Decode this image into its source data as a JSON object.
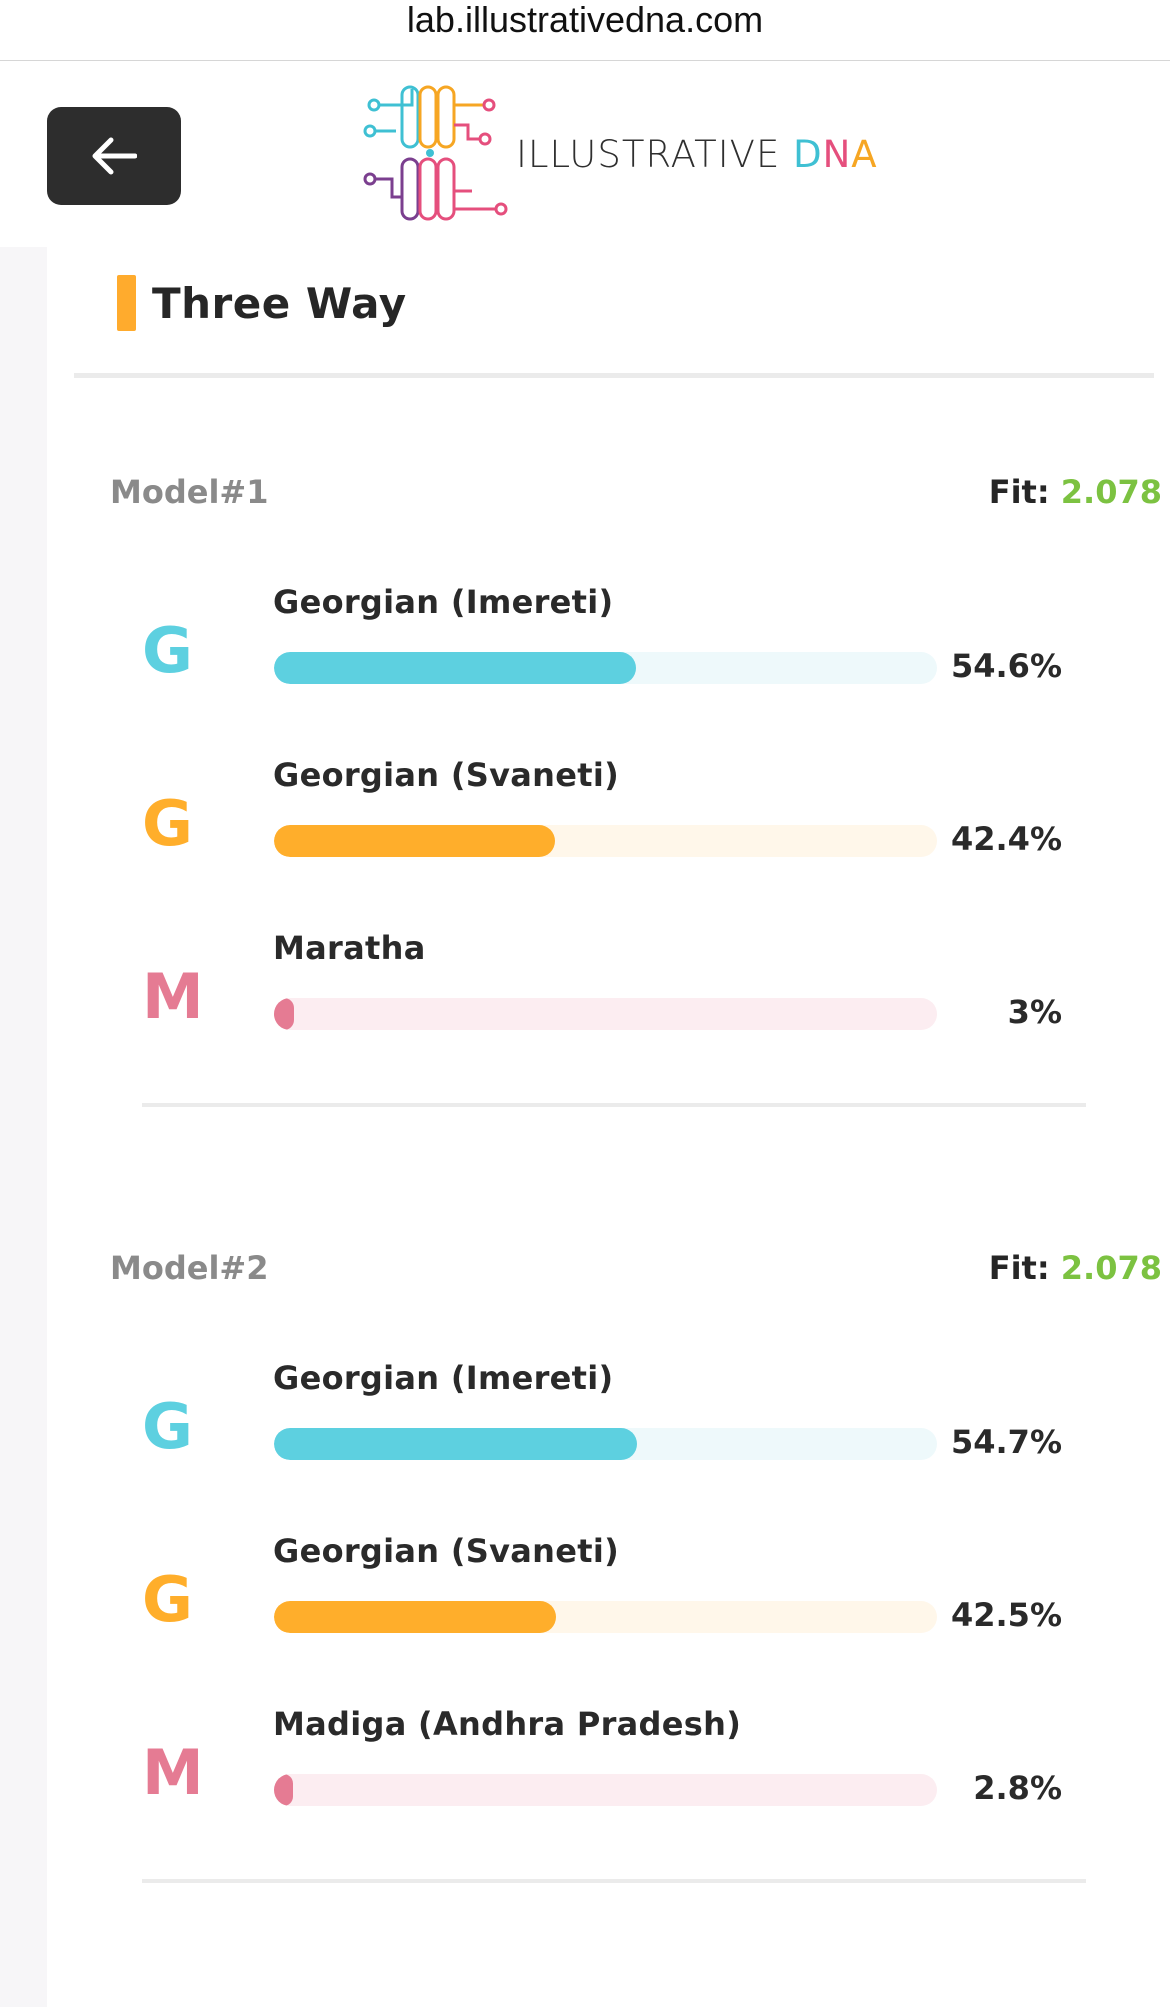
{
  "browser": {
    "url": "lab.illustrativedna.com"
  },
  "header": {
    "back_icon": "arrow-left-icon",
    "logo": {
      "word1": "ILLUSTRATIVE",
      "word2_letters": [
        "D",
        "N",
        "A"
      ],
      "word2_colors": [
        "#3fc0d3",
        "#e54f7d",
        "#f6a623"
      ]
    }
  },
  "section": {
    "title": "Three Way",
    "accent_color": "#ffab2d"
  },
  "colors": {
    "cyan": "#5dd0e0",
    "cyan_track": "#eef9fb",
    "orange": "#ffae2b",
    "orange_track": "#fff7ea",
    "pink": "#e57b93",
    "pink_track": "#fcedf1",
    "fit_green": "#7cc241"
  },
  "models": [
    {
      "label": "Model#1",
      "fit_label": "Fit: ",
      "fit_value": "2.078",
      "rows": [
        {
          "initial": "G",
          "name": "Georgian (Imereti)",
          "percent": "54.6%",
          "fraction": 0.546,
          "color": "cyan"
        },
        {
          "initial": "G",
          "name": "Georgian (Svaneti)",
          "percent": "42.4%",
          "fraction": 0.424,
          "color": "orange"
        },
        {
          "initial": "M",
          "name": "Maratha",
          "percent": "3%",
          "fraction": 0.03,
          "color": "pink"
        }
      ]
    },
    {
      "label": "Model#2",
      "fit_label": "Fit: ",
      "fit_value": "2.078",
      "rows": [
        {
          "initial": "G",
          "name": "Georgian (Imereti)",
          "percent": "54.7%",
          "fraction": 0.547,
          "color": "cyan"
        },
        {
          "initial": "G",
          "name": "Georgian (Svaneti)",
          "percent": "42.5%",
          "fraction": 0.425,
          "color": "orange"
        },
        {
          "initial": "M",
          "name": "Madiga (Andhra Pradesh)",
          "percent": "2.8%",
          "fraction": 0.028,
          "color": "pink"
        }
      ]
    }
  ]
}
